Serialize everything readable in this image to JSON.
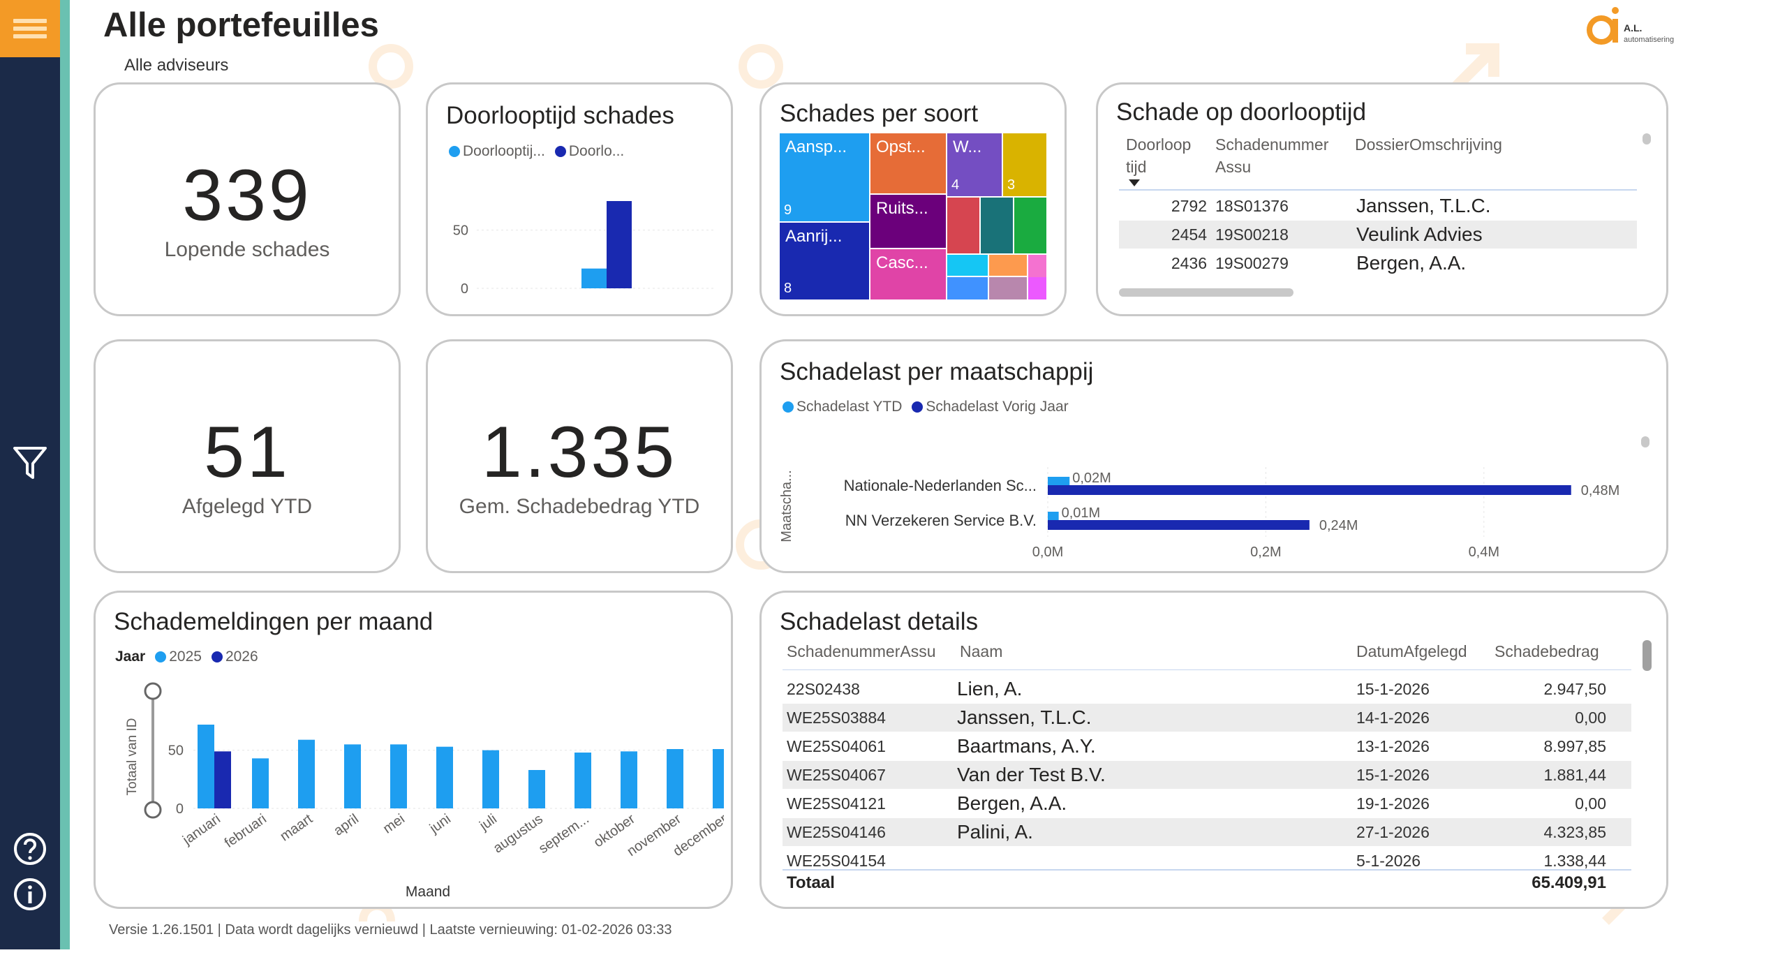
{
  "header": {
    "title": "Alle portefeuilles",
    "subtitle": "Alle adviseurs",
    "logo_text": "A.L. automatisering"
  },
  "footer": "Versie 1.26.1501 | Data wordt dagelijks vernieuwd | Laatste vernieuwing: 01-02-2026 03:33",
  "colors": {
    "sidebar": "#1b2a48",
    "accent": "#f39a26",
    "teal": "#6ac1b1",
    "light_blue": "#1e9ef0",
    "dark_blue": "#1929b0"
  },
  "kpis": {
    "lopende": {
      "value": "339",
      "label": "Lopende schades"
    },
    "afgelegd": {
      "value": "51",
      "label": "Afgelegd YTD"
    },
    "gem": {
      "value": "1.335",
      "label": "Gem. Schadebedrag YTD"
    }
  },
  "doorlooptijd": {
    "title": "Doorlooptijd schades",
    "legend": [
      "Doorlooptij...",
      "Doorlo..."
    ],
    "ticks": [
      "50",
      "0"
    ],
    "chart_data": {
      "type": "bar",
      "categories": [
        ""
      ],
      "series": [
        {
          "name": "Doorlooptij...",
          "values": [
            17
          ]
        },
        {
          "name": "Doorlo...",
          "values": [
            75
          ]
        }
      ],
      "ylim": [
        0,
        90
      ]
    }
  },
  "schades_per_soort": {
    "title": "Schades per soort",
    "cells": [
      {
        "label": "Aansp...",
        "count": "9",
        "color": "#1e9ef0"
      },
      {
        "label": "Aanrij...",
        "count": "8",
        "color": "#1929b0"
      },
      {
        "label": "Opst...",
        "count": "",
        "color": "#e66c37"
      },
      {
        "label": "Ruits...",
        "count": "",
        "color": "#6b007b"
      },
      {
        "label": "Casc...",
        "count": "",
        "color": "#e044a7"
      },
      {
        "label": "W...",
        "count": "4",
        "color": "#744ec2"
      },
      {
        "label": "",
        "count": "3",
        "color": "#d9b300"
      },
      {
        "label": "",
        "count": "",
        "color": "#d64550"
      },
      {
        "label": "",
        "count": "",
        "color": "#197278"
      },
      {
        "label": "",
        "count": "",
        "color": "#1aab40"
      },
      {
        "label": "",
        "count": "",
        "color": "#15c6f4"
      },
      {
        "label": "",
        "count": "",
        "color": "#fd9a4e"
      },
      {
        "label": "",
        "count": "",
        "color": "#f472d0"
      },
      {
        "label": "",
        "count": "",
        "color": "#4092ff"
      },
      {
        "label": "",
        "count": "",
        "color": "#b887ad"
      },
      {
        "label": "",
        "count": "",
        "color": "#ec59ff"
      }
    ]
  },
  "schade_op_doorlooptijd": {
    "title": "Schade op doorlooptijd",
    "headers": {
      "col1a": "Doorloop",
      "col1b": "tijd",
      "col2a": "Schadenummer",
      "col2b": "Assu",
      "col3": "DossierOmschrijving"
    },
    "rows": [
      {
        "tijd": "2792",
        "nummer": "18S01376",
        "omschrijving": "Janssen, T.L.C."
      },
      {
        "tijd": "2454",
        "nummer": "19S00218",
        "omschrijving": "Veulink Advies"
      },
      {
        "tijd": "2436",
        "nummer": "19S00279",
        "omschrijving": "Bergen, A.A."
      }
    ]
  },
  "schadelast_maatschappij": {
    "title": "Schadelast per maatschappij",
    "legend": [
      "Schadelast YTD",
      "Schadelast Vorig Jaar"
    ],
    "yaxis_label": "Maatscha...",
    "chart_data": {
      "type": "bar",
      "categories": [
        "Nationale-Nederlanden Sc...",
        "NN Verzekeren Service B.V."
      ],
      "series": [
        {
          "name": "Schadelast YTD",
          "values": [
            0.02,
            0.01
          ],
          "labels": [
            "0,02M",
            "0,01M"
          ]
        },
        {
          "name": "Schadelast Vorig Jaar",
          "values": [
            0.48,
            0.24
          ],
          "labels": [
            "0,48M",
            "0,24M"
          ]
        }
      ],
      "xticks": [
        "0,0M",
        "0,2M",
        "0,4M"
      ],
      "xlim": [
        0,
        0.52
      ]
    }
  },
  "schademeldingen": {
    "title": "Schademeldingen per maand",
    "legend_title": "Jaar",
    "legend": [
      "2025",
      "2026"
    ],
    "ylabel": "Totaal van ID",
    "xlabel": "Maand",
    "yticks": [
      "50",
      "0"
    ],
    "chart_data": {
      "type": "bar",
      "categories": [
        "januari",
        "februari",
        "maart",
        "april",
        "mei",
        "juni",
        "juli",
        "augustus",
        "septem...",
        "oktober",
        "november",
        "december"
      ],
      "series": [
        {
          "name": "2025",
          "values": [
            72,
            43,
            59,
            55,
            55,
            53,
            50,
            33,
            48,
            49,
            51,
            51
          ]
        },
        {
          "name": "2026",
          "values": [
            49,
            null,
            null,
            null,
            null,
            null,
            null,
            null,
            null,
            null,
            null,
            null
          ]
        }
      ],
      "ylim": [
        0,
        90
      ]
    }
  },
  "schadelast_details": {
    "title": "Schadelast details",
    "headers": [
      "SchadenummerAssu",
      "Naam",
      "DatumAfgelegd",
      "Schadebedrag"
    ],
    "rows": [
      {
        "nummer": "22S02438",
        "naam": "Lien, A.",
        "datum": "15-1-2026",
        "bedrag": "2.947,50"
      },
      {
        "nummer": "WE25S03884",
        "naam": "Janssen, T.L.C.",
        "datum": "14-1-2026",
        "bedrag": "0,00"
      },
      {
        "nummer": "WE25S04061",
        "naam": "Baartmans, A.Y.",
        "datum": "13-1-2026",
        "bedrag": "8.997,85"
      },
      {
        "nummer": "WE25S04067",
        "naam": "Van der Test B.V.",
        "datum": "15-1-2026",
        "bedrag": "1.881,44"
      },
      {
        "nummer": "WE25S04121",
        "naam": "Bergen, A.A.",
        "datum": "19-1-2026",
        "bedrag": "0,00"
      },
      {
        "nummer": "WE25S04146",
        "naam": "Palini, A.",
        "datum": "27-1-2026",
        "bedrag": "4.323,85"
      },
      {
        "nummer": "WE25S04154",
        "naam": "",
        "datum": "5-1-2026",
        "bedrag": "1.338,44"
      }
    ],
    "total_label": "Totaal",
    "total_value": "65.409,91"
  }
}
